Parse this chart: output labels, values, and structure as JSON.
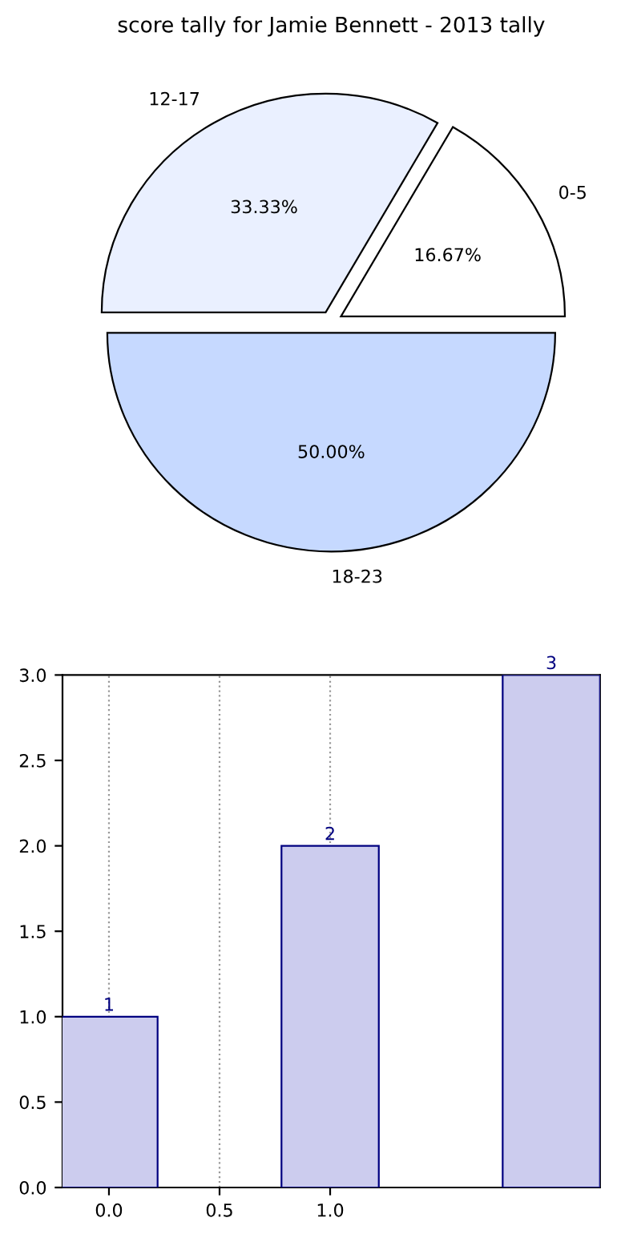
{
  "chart_data": [
    {
      "type": "pie",
      "title": "score tally for Jamie Bennett - 2013 tally",
      "categories": [
        "0-5",
        "12-17",
        "18-23"
      ],
      "values": [
        16.67,
        33.33,
        50.0
      ],
      "value_labels": [
        "16.67%",
        "33.33%",
        "50.00%"
      ],
      "colors": [
        "#ffffff",
        "#eaf0ff",
        "#c6d9ff"
      ]
    },
    {
      "type": "bar",
      "x": [
        0,
        1,
        2
      ],
      "values": [
        1,
        2,
        3
      ],
      "color": "#ccccee",
      "data_labels": true,
      "xlim": [
        -0.21,
        2.22
      ],
      "xticks": [
        {
          "value": 0,
          "label": "0.0"
        },
        {
          "value": 0.5,
          "label": "0.5"
        },
        {
          "value": 1.0,
          "label": "1.0"
        }
      ],
      "ylim": [
        0,
        3
      ],
      "yticks": [
        {
          "value": 0,
          "label": "0.0"
        },
        {
          "value": 0.5,
          "label": "0.5"
        },
        {
          "value": 1.0,
          "label": "1.0"
        },
        {
          "value": 1.5,
          "label": "1.5"
        },
        {
          "value": 2.0,
          "label": "2.0"
        },
        {
          "value": 2.5,
          "label": "2.5"
        },
        {
          "value": 3.0,
          "label": "3.0"
        }
      ],
      "grid": "x"
    }
  ]
}
